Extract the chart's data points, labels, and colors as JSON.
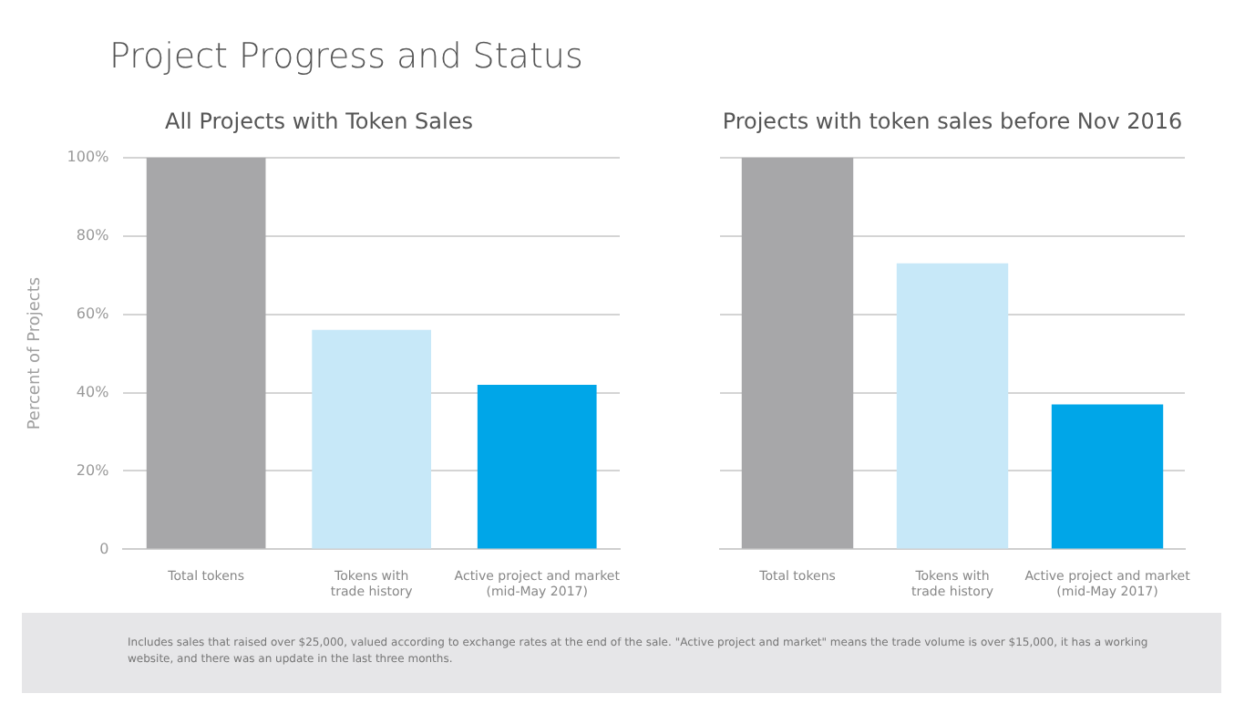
{
  "chart_data": [
    {
      "type": "bar",
      "title": "All Projects with Token Sales",
      "ylabel": "Percent of Projects",
      "categories": [
        "Total tokens",
        "Tokens with\ntrade history",
        "Active project and market\n(mid-May 2017)"
      ],
      "values": [
        100,
        56,
        42
      ],
      "colors": [
        "#a7a7a9",
        "#c7e8f8",
        "#00a6e8"
      ],
      "ylim": [
        0,
        100
      ],
      "yticks": [
        {
          "value": 0,
          "label": "0"
        },
        {
          "value": 20,
          "label": "20%"
        },
        {
          "value": 40,
          "label": "40%"
        },
        {
          "value": 60,
          "label": "60%"
        },
        {
          "value": 80,
          "label": "80%"
        },
        {
          "value": 100,
          "label": "100%"
        }
      ],
      "grid": "y",
      "legend": false,
      "annotations": [
        "Project Progress and Status",
        "Includes sales that raised over $25,000, valued according to exchange rates at the end of the sale. \"Active project and market\" means the trade volume is over $15,000, it has a working website, and there was an update in the last three months."
      ]
    },
    {
      "type": "bar",
      "title": "Projects with token sales before Nov 2016",
      "categories": [
        "Total tokens",
        "Tokens with\ntrade history",
        "Active project and market\n(mid-May 2017)"
      ],
      "values": [
        100,
        73,
        37
      ],
      "colors": [
        "#a7a7a9",
        "#c7e8f8",
        "#00a6e8"
      ],
      "ylim": [
        0,
        100
      ],
      "yticks": [
        0,
        20,
        40,
        60,
        80,
        100
      ],
      "grid": "y",
      "legend": false,
      "tick_labels": "x"
    }
  ]
}
